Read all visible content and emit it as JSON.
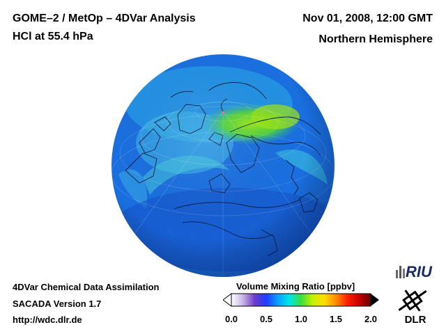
{
  "header": {
    "title": "GOME–2 / MetOp – 4DVar Analysis",
    "species": "HCl at 55.4 hPa",
    "datetime": "Nov 01, 2008, 12:00 GMT",
    "region": "Northern Hemisphere"
  },
  "footer": {
    "line1": "4DVar Chemical Data Assimilation",
    "line2": "SACADA Version 1.7",
    "url": "http://wdc.dlr.de"
  },
  "colorbar": {
    "title": "Volume Mixing Ratio [ppbv]",
    "ticks": [
      "0.0",
      "0.5",
      "1.0",
      "1.5",
      "2.0"
    ],
    "range": [
      0.0,
      2.0
    ],
    "colors": [
      "#ffffff",
      "#c8b4e6",
      "#6e3cc8",
      "#1e3cff",
      "#0aa0ff",
      "#00e6e6",
      "#3cdc3c",
      "#c8f000",
      "#ffdc00",
      "#ff8c00",
      "#ff1e00",
      "#c80000",
      "#640000"
    ]
  },
  "map": {
    "projection": "orthographic",
    "hemisphere": "northern",
    "ocean_color": "#1a6fe0",
    "high_value_color": "#7fdc1e"
  },
  "logos": {
    "riu_text": "RIU",
    "dlr_text": "DLR"
  }
}
